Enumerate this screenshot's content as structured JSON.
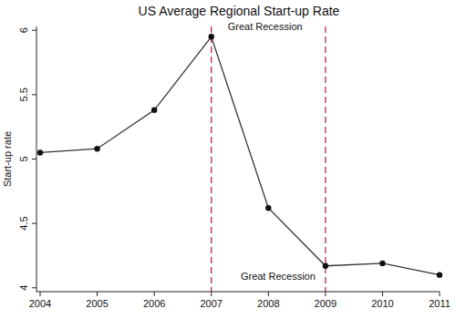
{
  "chart_data": {
    "type": "line",
    "title": "US Average Regional Start-up Rate",
    "y_label": "Start-up rate",
    "x": [
      2004,
      2005,
      2006,
      2007,
      2008,
      2009,
      2010,
      2011
    ],
    "values": [
      5.05,
      5.08,
      5.38,
      5.95,
      4.62,
      4.17,
      4.19,
      4.1
    ],
    "color": "#333333",
    "marker": "circle",
    "xlim": [
      2004,
      2011
    ],
    "xticks": [
      2004,
      2005,
      2006,
      2007,
      2008,
      2009,
      2010,
      2011
    ],
    "ylim": [
      3.97,
      6.03
    ],
    "yticks": [
      4,
      4.5,
      5,
      5.5,
      6
    ],
    "annotations": [
      {
        "x": 2007,
        "label": "Great Recession"
      },
      {
        "x": 2009,
        "label": "Great Recession"
      }
    ]
  }
}
